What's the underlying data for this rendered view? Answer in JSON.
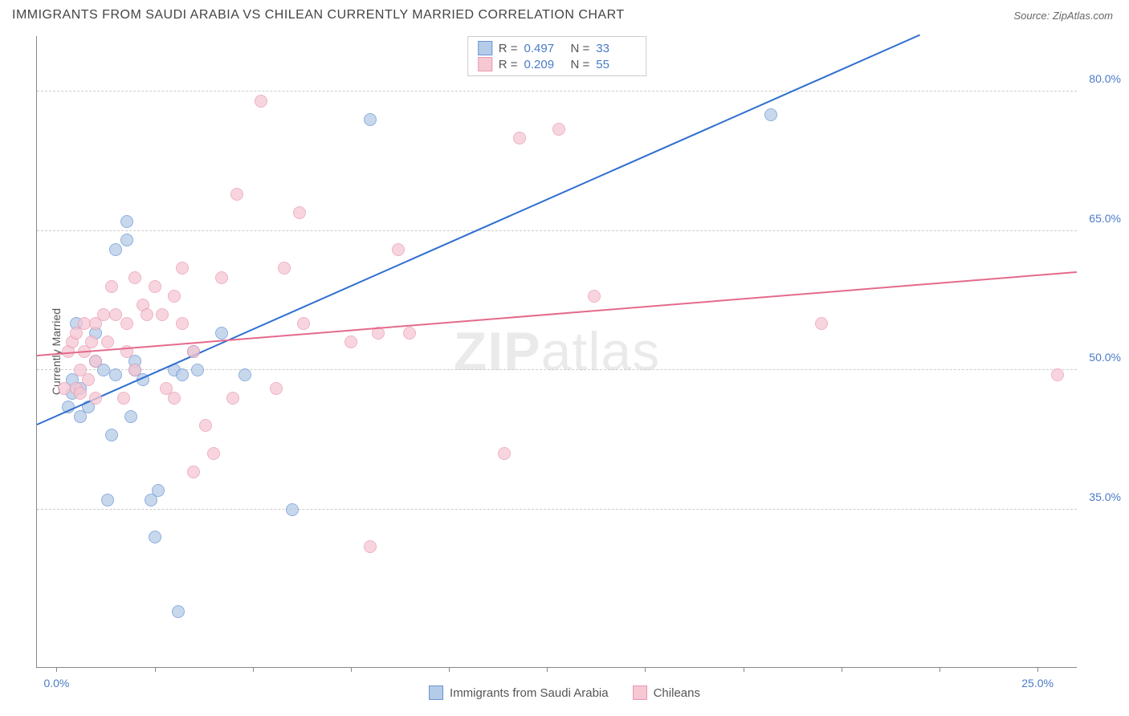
{
  "title": "IMMIGRANTS FROM SAUDI ARABIA VS CHILEAN CURRENTLY MARRIED CORRELATION CHART",
  "source": "Source: ZipAtlas.com",
  "watermark": "ZIPatlas",
  "chart": {
    "type": "scatter",
    "ylabel": "Currently Married",
    "xlim": [
      -0.5,
      26
    ],
    "ylim": [
      18,
      86
    ],
    "y_gridlines": [
      35.0,
      50.0,
      65.0,
      80.0
    ],
    "y_tick_labels": [
      "35.0%",
      "50.0%",
      "65.0%",
      "80.0%"
    ],
    "x_ticks": [
      0,
      2.5,
      5,
      7.5,
      10,
      12.5,
      15,
      17.5,
      20,
      22.5,
      25
    ],
    "x_tick_labels": {
      "0": "0.0%",
      "25": "25.0%"
    },
    "background_color": "#ffffff",
    "grid_color": "#cccccc",
    "axis_color": "#888888",
    "tick_color": "#4a7bc8",
    "series": [
      {
        "name": "Immigrants from Saudi Arabia",
        "fill": "#b5cce8",
        "stroke": "#6a94d4",
        "line_color": "#2f6fd0",
        "R": "0.497",
        "N": "33",
        "trend": {
          "x1": -0.5,
          "y1": 44,
          "x2": 22,
          "y2": 86
        },
        "points": [
          [
            0.3,
            46
          ],
          [
            0.4,
            47.5
          ],
          [
            0.4,
            49
          ],
          [
            0.5,
            55
          ],
          [
            0.6,
            45
          ],
          [
            0.6,
            48
          ],
          [
            0.8,
            46
          ],
          [
            1.0,
            51
          ],
          [
            1.0,
            54
          ],
          [
            1.2,
            50
          ],
          [
            1.3,
            36
          ],
          [
            1.4,
            43
          ],
          [
            1.5,
            63
          ],
          [
            1.5,
            49.5
          ],
          [
            1.8,
            66
          ],
          [
            1.8,
            64
          ],
          [
            1.9,
            45
          ],
          [
            2.0,
            50
          ],
          [
            2.0,
            51
          ],
          [
            2.2,
            49
          ],
          [
            2.4,
            36
          ],
          [
            2.5,
            32
          ],
          [
            2.6,
            37
          ],
          [
            3.0,
            50
          ],
          [
            3.1,
            24
          ],
          [
            3.2,
            49.5
          ],
          [
            3.6,
            50
          ],
          [
            4.2,
            54
          ],
          [
            4.8,
            49.5
          ],
          [
            6.0,
            35
          ],
          [
            8.0,
            77
          ],
          [
            18.2,
            77.5
          ],
          [
            3.5,
            52
          ]
        ]
      },
      {
        "name": "Chileans",
        "fill": "#f6c8d3",
        "stroke": "#e89ab0",
        "line_color": "#e46a8c",
        "R": "0.209",
        "N": "55",
        "trend": {
          "x1": -0.5,
          "y1": 51.5,
          "x2": 26,
          "y2": 60.5
        },
        "points": [
          [
            0.2,
            48
          ],
          [
            0.3,
            52
          ],
          [
            0.4,
            53
          ],
          [
            0.5,
            48
          ],
          [
            0.5,
            54
          ],
          [
            0.6,
            50
          ],
          [
            0.6,
            47.5
          ],
          [
            0.7,
            52
          ],
          [
            0.7,
            55
          ],
          [
            0.8,
            49
          ],
          [
            0.9,
            53
          ],
          [
            1.0,
            55
          ],
          [
            1.0,
            47
          ],
          [
            1.0,
            51
          ],
          [
            1.2,
            56
          ],
          [
            1.3,
            53
          ],
          [
            1.4,
            59
          ],
          [
            1.5,
            56
          ],
          [
            1.7,
            47
          ],
          [
            1.8,
            55
          ],
          [
            1.8,
            52
          ],
          [
            2.0,
            60
          ],
          [
            2.0,
            50
          ],
          [
            2.2,
            57
          ],
          [
            2.3,
            56
          ],
          [
            2.5,
            59
          ],
          [
            2.7,
            56
          ],
          [
            2.8,
            48
          ],
          [
            3.0,
            47
          ],
          [
            3.0,
            58
          ],
          [
            3.2,
            55
          ],
          [
            3.2,
            61
          ],
          [
            3.5,
            39
          ],
          [
            3.5,
            52
          ],
          [
            3.8,
            44
          ],
          [
            4.0,
            41
          ],
          [
            4.2,
            60
          ],
          [
            4.5,
            47
          ],
          [
            4.6,
            69
          ],
          [
            5.2,
            79
          ],
          [
            5.6,
            48
          ],
          [
            5.8,
            61
          ],
          [
            6.2,
            67
          ],
          [
            6.3,
            55
          ],
          [
            7.5,
            53
          ],
          [
            8.0,
            31
          ],
          [
            8.2,
            54
          ],
          [
            8.7,
            63
          ],
          [
            9.0,
            54
          ],
          [
            11.4,
            41
          ],
          [
            11.8,
            75
          ],
          [
            12.8,
            76
          ],
          [
            13.7,
            58
          ],
          [
            19.5,
            55
          ],
          [
            25.5,
            49.5
          ]
        ]
      }
    ]
  }
}
